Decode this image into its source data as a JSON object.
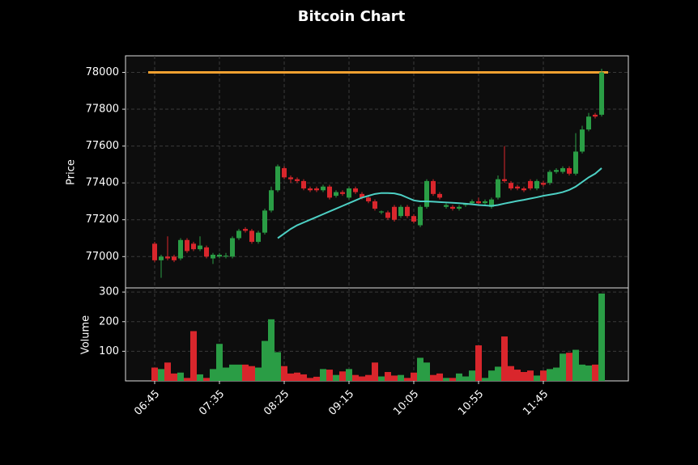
{
  "chart_data": {
    "type": "candlestick",
    "title": "Bitcoin Chart",
    "ylabel": "Price",
    "volume_label": "Volume",
    "categories": [
      "06:45",
      null,
      null,
      null,
      null,
      null,
      null,
      null,
      null,
      null,
      "07:35",
      null,
      null,
      null,
      null,
      null,
      null,
      null,
      null,
      null,
      "08:25",
      null,
      null,
      null,
      null,
      null,
      null,
      null,
      null,
      null,
      "09:15",
      null,
      null,
      null,
      null,
      null,
      null,
      null,
      null,
      null,
      "10:05",
      null,
      null,
      null,
      null,
      null,
      null,
      null,
      null,
      null,
      "10:55",
      null,
      null,
      null,
      null,
      null,
      null,
      null,
      null,
      null,
      "11:45",
      null,
      null,
      null,
      null,
      null,
      null,
      null,
      null,
      null
    ],
    "open": [
      77070,
      76980,
      77000,
      77000,
      76990,
      77090,
      77070,
      77040,
      77050,
      76990,
      77000,
      77000,
      77000,
      77100,
      77150,
      77140,
      77080,
      77130,
      77250,
      77360,
      77480,
      77430,
      77420,
      77410,
      77370,
      77370,
      77360,
      77380,
      77330,
      77350,
      77320,
      77370,
      77340,
      77320,
      77300,
      77240,
      77240,
      77270,
      77220,
      77270,
      77220,
      77170,
      77270,
      77410,
      77340,
      77270,
      77270,
      77260,
      77280,
      77290,
      77300,
      77290,
      77270,
      77320,
      77420,
      77400,
      77380,
      77370,
      77410,
      77370,
      77400,
      77400,
      77460,
      77460,
      77480,
      77450,
      77570,
      77690,
      77770,
      77770
    ],
    "high": [
      77080,
      77010,
      77110,
      77010,
      77100,
      77100,
      77080,
      77110,
      77060,
      77020,
      77020,
      77020,
      77110,
      77150,
      77160,
      77150,
      77140,
      77260,
      77380,
      77500,
      77490,
      77440,
      77430,
      77420,
      77380,
      77380,
      77390,
      77390,
      77360,
      77360,
      77380,
      77380,
      77350,
      77330,
      77310,
      77250,
      77250,
      77280,
      77280,
      77280,
      77230,
      77280,
      77420,
      77420,
      77350,
      77290,
      77280,
      77280,
      77290,
      77310,
      77320,
      77310,
      77320,
      77440,
      77600,
      77410,
      77390,
      77380,
      77420,
      77420,
      77410,
      77470,
      77480,
      77490,
      77490,
      77670,
      77710,
      77780,
      77780,
      78020
    ],
    "low": [
      76970,
      76885,
      76980,
      76970,
      76980,
      77020,
      77030,
      77030,
      76990,
      76960,
      76990,
      76990,
      76990,
      77090,
      77130,
      77070,
      77070,
      77120,
      77240,
      77350,
      77420,
      77400,
      77400,
      77360,
      77350,
      77350,
      77350,
      77310,
      77320,
      77330,
      77310,
      77340,
      77310,
      77290,
      77250,
      77230,
      77200,
      77190,
      77210,
      77210,
      77180,
      77160,
      77260,
      77330,
      77310,
      77260,
      77250,
      77250,
      77270,
      77280,
      77280,
      77280,
      77260,
      77310,
      77400,
      77360,
      77360,
      77350,
      77360,
      77360,
      77380,
      77390,
      77450,
      77450,
      77440,
      77440,
      77560,
      77680,
      77750,
      77760
    ],
    "close": [
      76980,
      77000,
      76990,
      76980,
      77090,
      77030,
      77040,
      77060,
      77000,
      77010,
      77010,
      77005,
      77100,
      77140,
      77140,
      77080,
      77130,
      77250,
      77360,
      77490,
      77430,
      77420,
      77410,
      77370,
      77360,
      77360,
      77380,
      77320,
      77350,
      77340,
      77370,
      77350,
      77320,
      77300,
      77260,
      77245,
      77210,
      77200,
      77270,
      77220,
      77190,
      77270,
      77410,
      77340,
      77320,
      77280,
      77260,
      77270,
      77285,
      77300,
      77290,
      77300,
      77310,
      77420,
      77410,
      77370,
      77370,
      77360,
      77370,
      77410,
      77390,
      77460,
      77470,
      77480,
      77450,
      77570,
      77690,
      77760,
      77760,
      78000
    ],
    "volume": [
      45,
      40,
      62,
      25,
      28,
      10,
      168,
      22,
      10,
      40,
      125,
      45,
      55,
      55,
      55,
      50,
      45,
      135,
      208,
      97,
      50,
      25,
      28,
      22,
      10,
      14,
      40,
      38,
      20,
      32,
      40,
      20,
      15,
      20,
      62,
      15,
      30,
      18,
      20,
      10,
      28,
      78,
      62,
      20,
      25,
      10,
      10,
      25,
      15,
      35,
      120,
      10,
      35,
      48,
      150,
      50,
      38,
      30,
      35,
      18,
      35,
      40,
      45,
      92,
      95,
      105,
      55,
      52,
      55,
      295
    ],
    "ma": [
      null,
      null,
      null,
      null,
      null,
      null,
      null,
      null,
      null,
      null,
      null,
      null,
      null,
      null,
      null,
      null,
      null,
      null,
      null,
      77100,
      77125,
      77150,
      77170,
      77185,
      77200,
      77215,
      77230,
      77245,
      77260,
      77275,
      77290,
      77305,
      77320,
      77330,
      77340,
      77345,
      77345,
      77343,
      77335,
      77320,
      77305,
      77300,
      77300,
      77298,
      77296,
      77294,
      77292,
      77290,
      77287,
      77284,
      77280,
      77278,
      77275,
      77280,
      77288,
      77295,
      77302,
      77308,
      77315,
      77322,
      77330,
      77336,
      77342,
      77350,
      77362,
      77380,
      77405,
      77430,
      77450,
      77480
    ],
    "ma_color": "#4dd0c4",
    "up_color": "#2a9d45",
    "down_color": "#d9262c",
    "level": 78000,
    "level_color": "#f0a030",
    "ylim": [
      76830,
      78090
    ],
    "yticks": [
      77000,
      77200,
      77400,
      77600,
      77800,
      78000
    ],
    "volume_ylim": [
      0,
      314
    ],
    "volume_yticks": [
      100,
      200,
      300
    ],
    "grid": true
  }
}
